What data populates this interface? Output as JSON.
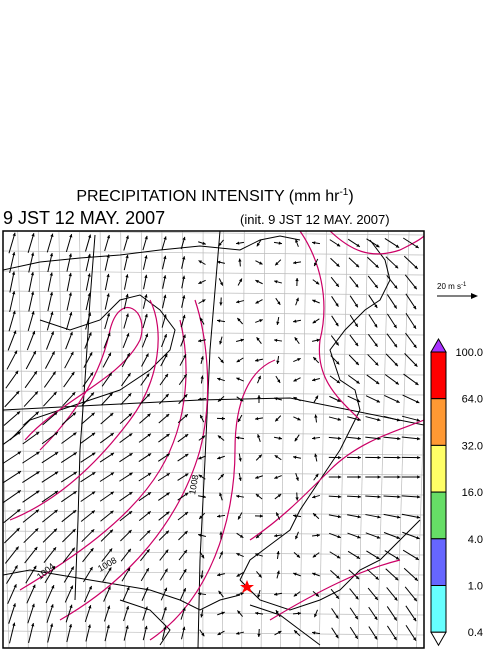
{
  "header": {
    "title": {
      "text": "PRECIPITATION INTENSITY (mm hr",
      "sup": "-1",
      "close": ")"
    },
    "valid_time": "9 JST 12 MAY. 2007",
    "init_time": "(init. 9 JST 12 MAY. 2007)"
  },
  "wind_scale": {
    "text": "20 m s",
    "sup": "-1"
  },
  "colorbar": {
    "levels": [
      {
        "label": "100.0",
        "color": "#ff0000"
      },
      {
        "label": "64.0",
        "color": "#ff9933"
      },
      {
        "label": "32.0",
        "color": "#ffff66"
      },
      {
        "label": "16.0",
        "color": "#66dd66"
      },
      {
        "label": "4.0",
        "color": "#6666ff"
      },
      {
        "label": "1.0",
        "color": "#66ffff"
      },
      {
        "label": "0.4",
        "color": "#ffffff"
      }
    ],
    "top_color": "#aa33ff"
  },
  "contour_labels": [
    "1008",
    "1004",
    "1008"
  ]
}
